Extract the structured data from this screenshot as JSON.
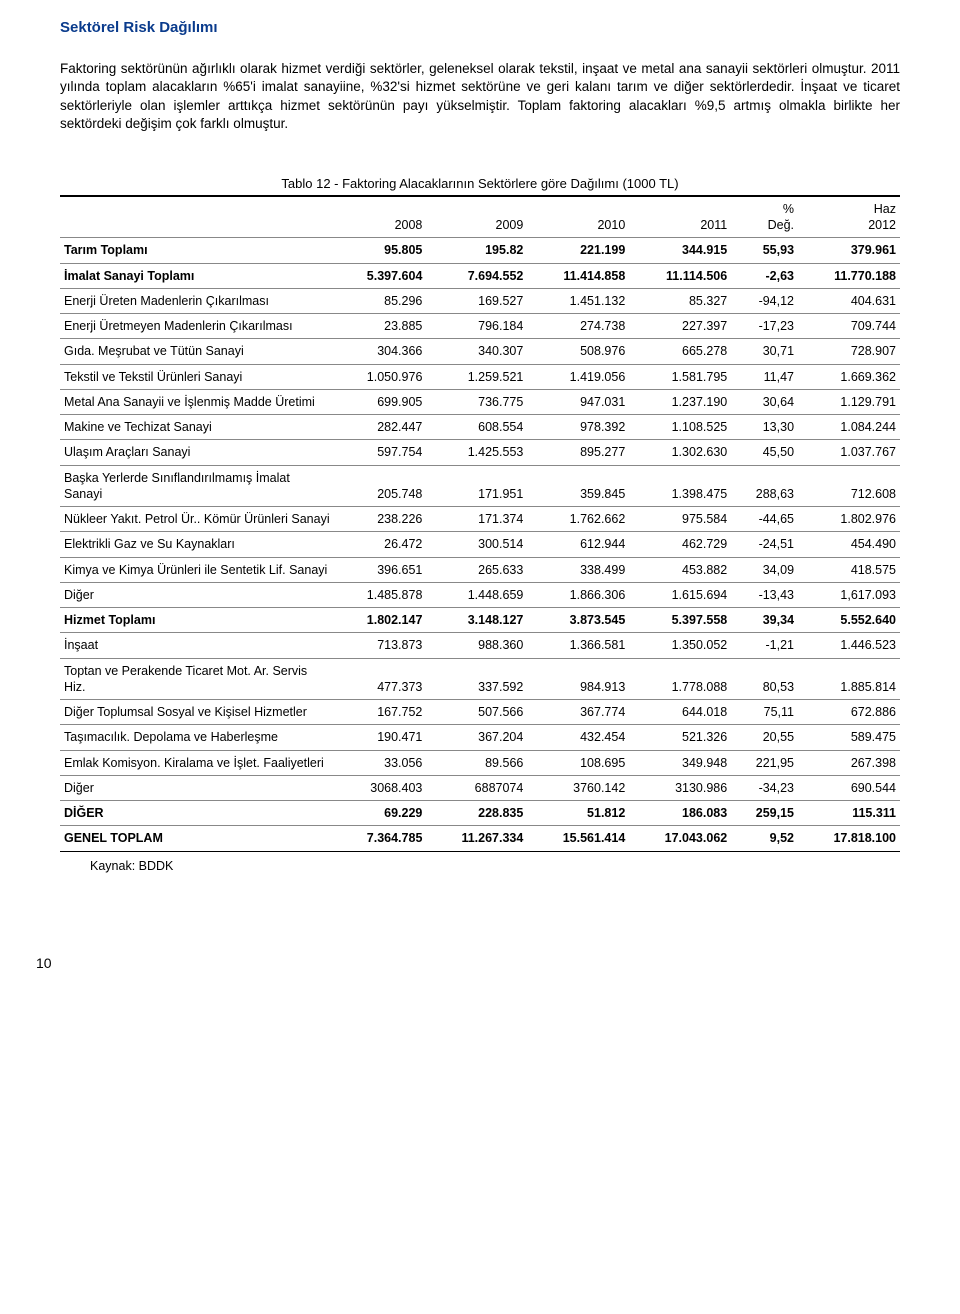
{
  "section_title": "Sektörel Risk Dağılımı",
  "paragraph": "Faktoring sektörünün ağırlıklı olarak hizmet verdiği sektörler, geleneksel olarak tekstil, inşaat ve metal ana sanayii sektörleri olmuştur. 2011 yılında toplam alacakların %65'i imalat sanayiine, %32'si hizmet sektörüne ve geri kalanı tarım ve diğer sektörlerdedir. İnşaat ve ticaret sektörleriyle olan işlemler arttıkça hizmet sektörünün payı yükselmiştir. Toplam faktoring alacakları %9,5 artmış olmakla birlikte her sektördeki değişim çok farklı olmuştur.",
  "table": {
    "title": "Tablo 12  -  Faktoring  Alacaklarının Sektörlere göre Dağılımı (1000 TL)",
    "columns": [
      {
        "key": "label",
        "header": ""
      },
      {
        "key": "y2008",
        "header": "2008"
      },
      {
        "key": "y2009",
        "header": "2009"
      },
      {
        "key": "y2010",
        "header": "2010"
      },
      {
        "key": "y2011",
        "header": "2011"
      },
      {
        "key": "pct",
        "header": "%\nDeğ."
      },
      {
        "key": "haz",
        "header": "Haz\n2012"
      }
    ],
    "rows": [
      {
        "bold": true,
        "label": "Tarım Toplamı",
        "y2008": "95.805",
        "y2009": "195.82",
        "y2010": "221.199",
        "y2011": "344.915",
        "pct": "55,93",
        "haz": "379.961"
      },
      {
        "bold": true,
        "label": "İmalat Sanayi Toplamı",
        "y2008": "5.397.604",
        "y2009": "7.694.552",
        "y2010": "11.414.858",
        "y2011": "11.114.506",
        "pct": "-2,63",
        "haz": "11.770.188"
      },
      {
        "bold": false,
        "label": "Enerji Üreten Madenlerin Çıkarılması",
        "y2008": "85.296",
        "y2009": "169.527",
        "y2010": "1.451.132",
        "y2011": "85.327",
        "pct": "-94,12",
        "haz": "404.631"
      },
      {
        "bold": false,
        "label": "Enerji Üretmeyen Madenlerin Çıkarılması",
        "y2008": "23.885",
        "y2009": "796.184",
        "y2010": "274.738",
        "y2011": "227.397",
        "pct": "-17,23",
        "haz": "709.744"
      },
      {
        "bold": false,
        "label": "Gıda. Meşrubat ve Tütün Sanayi",
        "y2008": "304.366",
        "y2009": "340.307",
        "y2010": "508.976",
        "y2011": "665.278",
        "pct": "30,71",
        "haz": "728.907"
      },
      {
        "bold": false,
        "label": "Tekstil ve Tekstil Ürünleri Sanayi",
        "y2008": "1.050.976",
        "y2009": "1.259.521",
        "y2010": "1.419.056",
        "y2011": "1.581.795",
        "pct": "11,47",
        "haz": "1.669.362"
      },
      {
        "bold": false,
        "label": "Metal Ana Sanayii ve İşlenmiş Madde Üretimi",
        "y2008": "699.905",
        "y2009": "736.775",
        "y2010": "947.031",
        "y2011": "1.237.190",
        "pct": "30,64",
        "haz": "1.129.791"
      },
      {
        "bold": false,
        "label": "Makine ve Techizat Sanayi",
        "y2008": "282.447",
        "y2009": "608.554",
        "y2010": "978.392",
        "y2011": "1.108.525",
        "pct": "13,30",
        "haz": "1.084.244"
      },
      {
        "bold": false,
        "label": "Ulaşım Araçları Sanayi",
        "y2008": "597.754",
        "y2009": "1.425.553",
        "y2010": "895.277",
        "y2011": "1.302.630",
        "pct": "45,50",
        "haz": "1.037.767"
      },
      {
        "bold": false,
        "label": "Başka Yerlerde Sınıflandırılmamış İmalat Sanayi",
        "y2008": "205.748",
        "y2009": "171.951",
        "y2010": "359.845",
        "y2011": "1.398.475",
        "pct": "288,63",
        "haz": "712.608"
      },
      {
        "bold": false,
        "label": "Nükleer Yakıt. Petrol Ür.. Kömür Ürünleri Sanayi",
        "y2008": "238.226",
        "y2009": "171.374",
        "y2010": "1.762.662",
        "y2011": "975.584",
        "pct": "-44,65",
        "haz": "1.802.976"
      },
      {
        "bold": false,
        "label": "Elektrikli Gaz ve Su Kaynakları",
        "y2008": "26.472",
        "y2009": "300.514",
        "y2010": "612.944",
        "y2011": "462.729",
        "pct": "-24,51",
        "haz": "454.490"
      },
      {
        "bold": false,
        "label": "Kimya ve Kimya Ürünleri ile Sentetik Lif. Sanayi",
        "y2008": "396.651",
        "y2009": "265.633",
        "y2010": "338.499",
        "y2011": "453.882",
        "pct": "34,09",
        "haz": "418.575"
      },
      {
        "bold": false,
        "label": "Diğer",
        "y2008": "1.485.878",
        "y2009": "1.448.659",
        "y2010": "1.866.306",
        "y2011": "1.615.694",
        "pct": "-13,43",
        "haz": "1,617.093"
      },
      {
        "bold": true,
        "label": "Hizmet Toplamı",
        "y2008": "1.802.147",
        "y2009": "3.148.127",
        "y2010": "3.873.545",
        "y2011": "5.397.558",
        "pct": "39,34",
        "haz": "5.552.640"
      },
      {
        "bold": false,
        "label": "İnşaat",
        "y2008": "713.873",
        "y2009": "988.360",
        "y2010": "1.366.581",
        "y2011": "1.350.052",
        "pct": "-1,21",
        "haz": "1.446.523"
      },
      {
        "bold": false,
        "label": "Toptan ve Perakende Ticaret Mot. Ar. Servis Hiz.",
        "y2008": "477.373",
        "y2009": "337.592",
        "y2010": "984.913",
        "y2011": "1.778.088",
        "pct": "80,53",
        "haz": "1.885.814"
      },
      {
        "bold": false,
        "label": "Diğer Toplumsal Sosyal ve Kişisel Hizmetler",
        "y2008": "167.752",
        "y2009": "507.566",
        "y2010": "367.774",
        "y2011": "644.018",
        "pct": "75,11",
        "haz": "672.886"
      },
      {
        "bold": false,
        "label": "Taşımacılık. Depolama ve Haberleşme",
        "y2008": "190.471",
        "y2009": "367.204",
        "y2010": "432.454",
        "y2011": "521.326",
        "pct": "20,55",
        "haz": "589.475"
      },
      {
        "bold": false,
        "label": "Emlak Komisyon. Kiralama ve İşlet. Faaliyetleri",
        "y2008": "33.056",
        "y2009": "89.566",
        "y2010": "108.695",
        "y2011": "349.948",
        "pct": "221,95",
        "haz": "267.398"
      },
      {
        "bold": false,
        "label": "Diğer",
        "y2008": "3068.403",
        "y2009": "6887074",
        "y2010": "3760.142",
        "y2011": "3130.986",
        "pct": "-34,23",
        "haz": "690.544"
      },
      {
        "bold": true,
        "label": "DİĞER",
        "y2008": "69.229",
        "y2009": "228.835",
        "y2010": "51.812",
        "y2011": "186.083",
        "pct": "259,15",
        "haz": "115.311"
      },
      {
        "bold": true,
        "label": "GENEL TOPLAM",
        "y2008": "7.364.785",
        "y2009": "11.267.334",
        "y2010": "15.561.414",
        "y2011": "17.043.062",
        "pct": "9,52",
        "haz": "17.818.100"
      }
    ]
  },
  "source": "Kaynak: BDDK",
  "page_number": "10"
}
